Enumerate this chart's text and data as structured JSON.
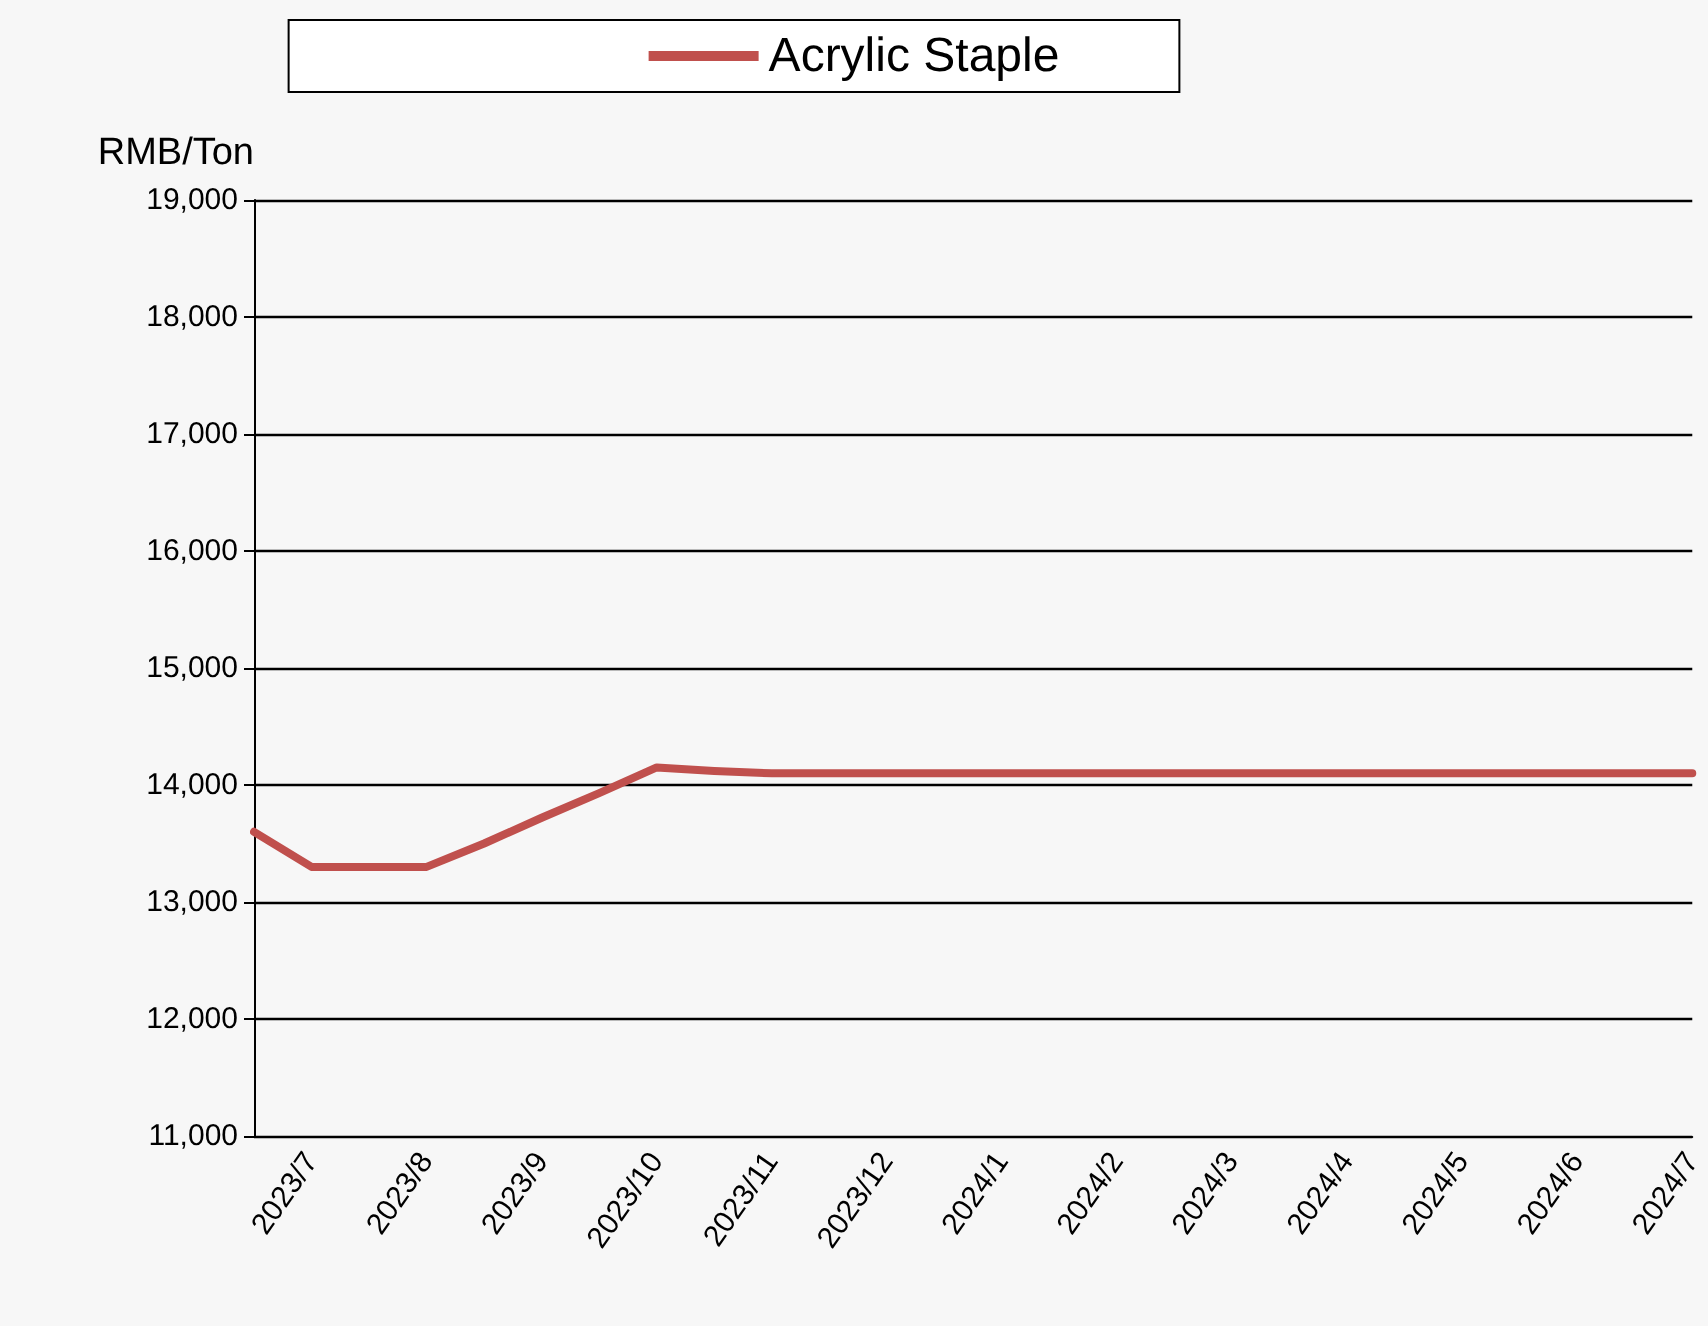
{
  "chart_data": {
    "type": "line",
    "ylabel": "RMB/Ton",
    "categories": [
      null,
      "2023/7",
      null,
      "2023/8",
      null,
      "2023/9",
      null,
      "2023/10",
      null,
      "2023/11",
      null,
      "2023/12",
      null,
      "2024/1",
      null,
      "2024/2",
      null,
      "2024/3",
      null,
      "2024/4",
      null,
      "2024/5",
      null,
      "2024/6",
      null,
      "2024/7"
    ],
    "series": [
      {
        "name": "Acrylic Staple",
        "color": "#c0504d",
        "values": [
          13600,
          13300,
          13300,
          13300,
          13500,
          13720,
          13930,
          14150,
          14120,
          14100,
          14100,
          14100,
          14100,
          14100,
          14100,
          14100,
          14100,
          14100,
          14100,
          14100,
          14100,
          14100,
          14100,
          14100,
          14100,
          14100
        ]
      }
    ],
    "ylim": [
      11000,
      19000
    ],
    "yticks": [
      {
        "value": 11000,
        "label": "11,000"
      },
      {
        "value": 12000,
        "label": "12,000"
      },
      {
        "value": 13000,
        "label": "13,000"
      },
      {
        "value": 14000,
        "label": "14,000"
      },
      {
        "value": 15000,
        "label": "15,000"
      },
      {
        "value": 16000,
        "label": "16,000"
      },
      {
        "value": 17000,
        "label": "17,000"
      },
      {
        "value": 18000,
        "label": "18,000"
      },
      {
        "value": 19000,
        "label": "19,000"
      }
    ],
    "grid": "y",
    "legend": "top",
    "marker": "none",
    "line_style": "solid"
  }
}
